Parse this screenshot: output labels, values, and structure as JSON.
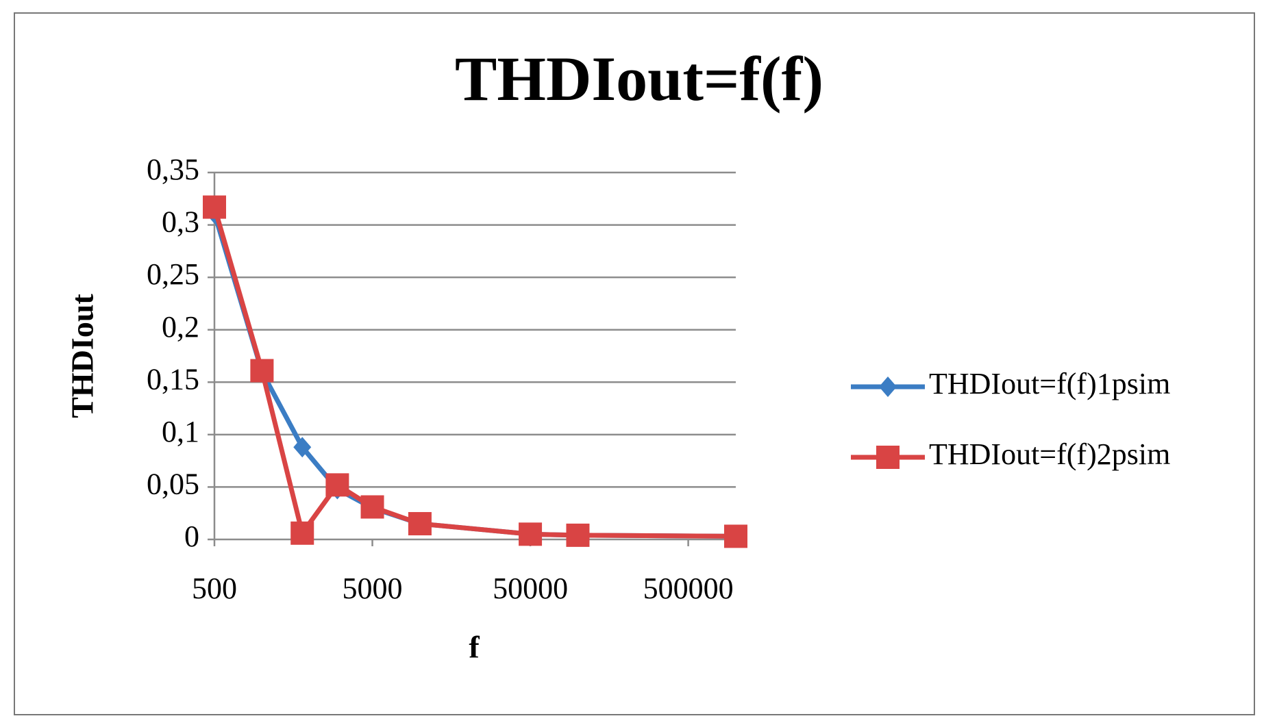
{
  "chart_data": {
    "type": "line",
    "title": "THDIout=f(f)",
    "x_label": "f",
    "y_label": "THDIout",
    "x": [
      500,
      1000,
      1800,
      3000,
      5000,
      10000,
      50000,
      100000,
      1000000
    ],
    "series": [
      {
        "name": "THDIout=f(f)1psim",
        "color": "#3b7dc4",
        "marker": "diamond",
        "values": [
          0.311,
          0.16,
          0.088,
          0.048,
          0.03,
          0.015,
          0.005,
          0.004,
          0.003
        ]
      },
      {
        "name": "THDIout=f(f)2psim",
        "color": "#d94444",
        "marker": "square",
        "values": [
          0.317,
          0.161,
          0.006,
          0.052,
          0.031,
          0.015,
          0.005,
          0.004,
          0.003
        ]
      }
    ],
    "xscale": "log",
    "xlim": [
      500,
      1000000
    ],
    "xticks": [
      500,
      5000,
      50000,
      500000
    ],
    "ylim": [
      0,
      0.35
    ],
    "yticks": [
      0,
      {
        "value": 0.05,
        "label": "0,05"
      },
      {
        "value": 0.1,
        "label": "0,1"
      },
      {
        "value": 0.15,
        "label": "0,15"
      },
      {
        "value": 0.2,
        "label": "0,2"
      },
      {
        "value": 0.25,
        "label": "0,25"
      },
      {
        "value": 0.3,
        "label": "0,3"
      },
      {
        "value": 0.35,
        "label": "0,35"
      }
    ],
    "grid": true,
    "legend": "right"
  }
}
